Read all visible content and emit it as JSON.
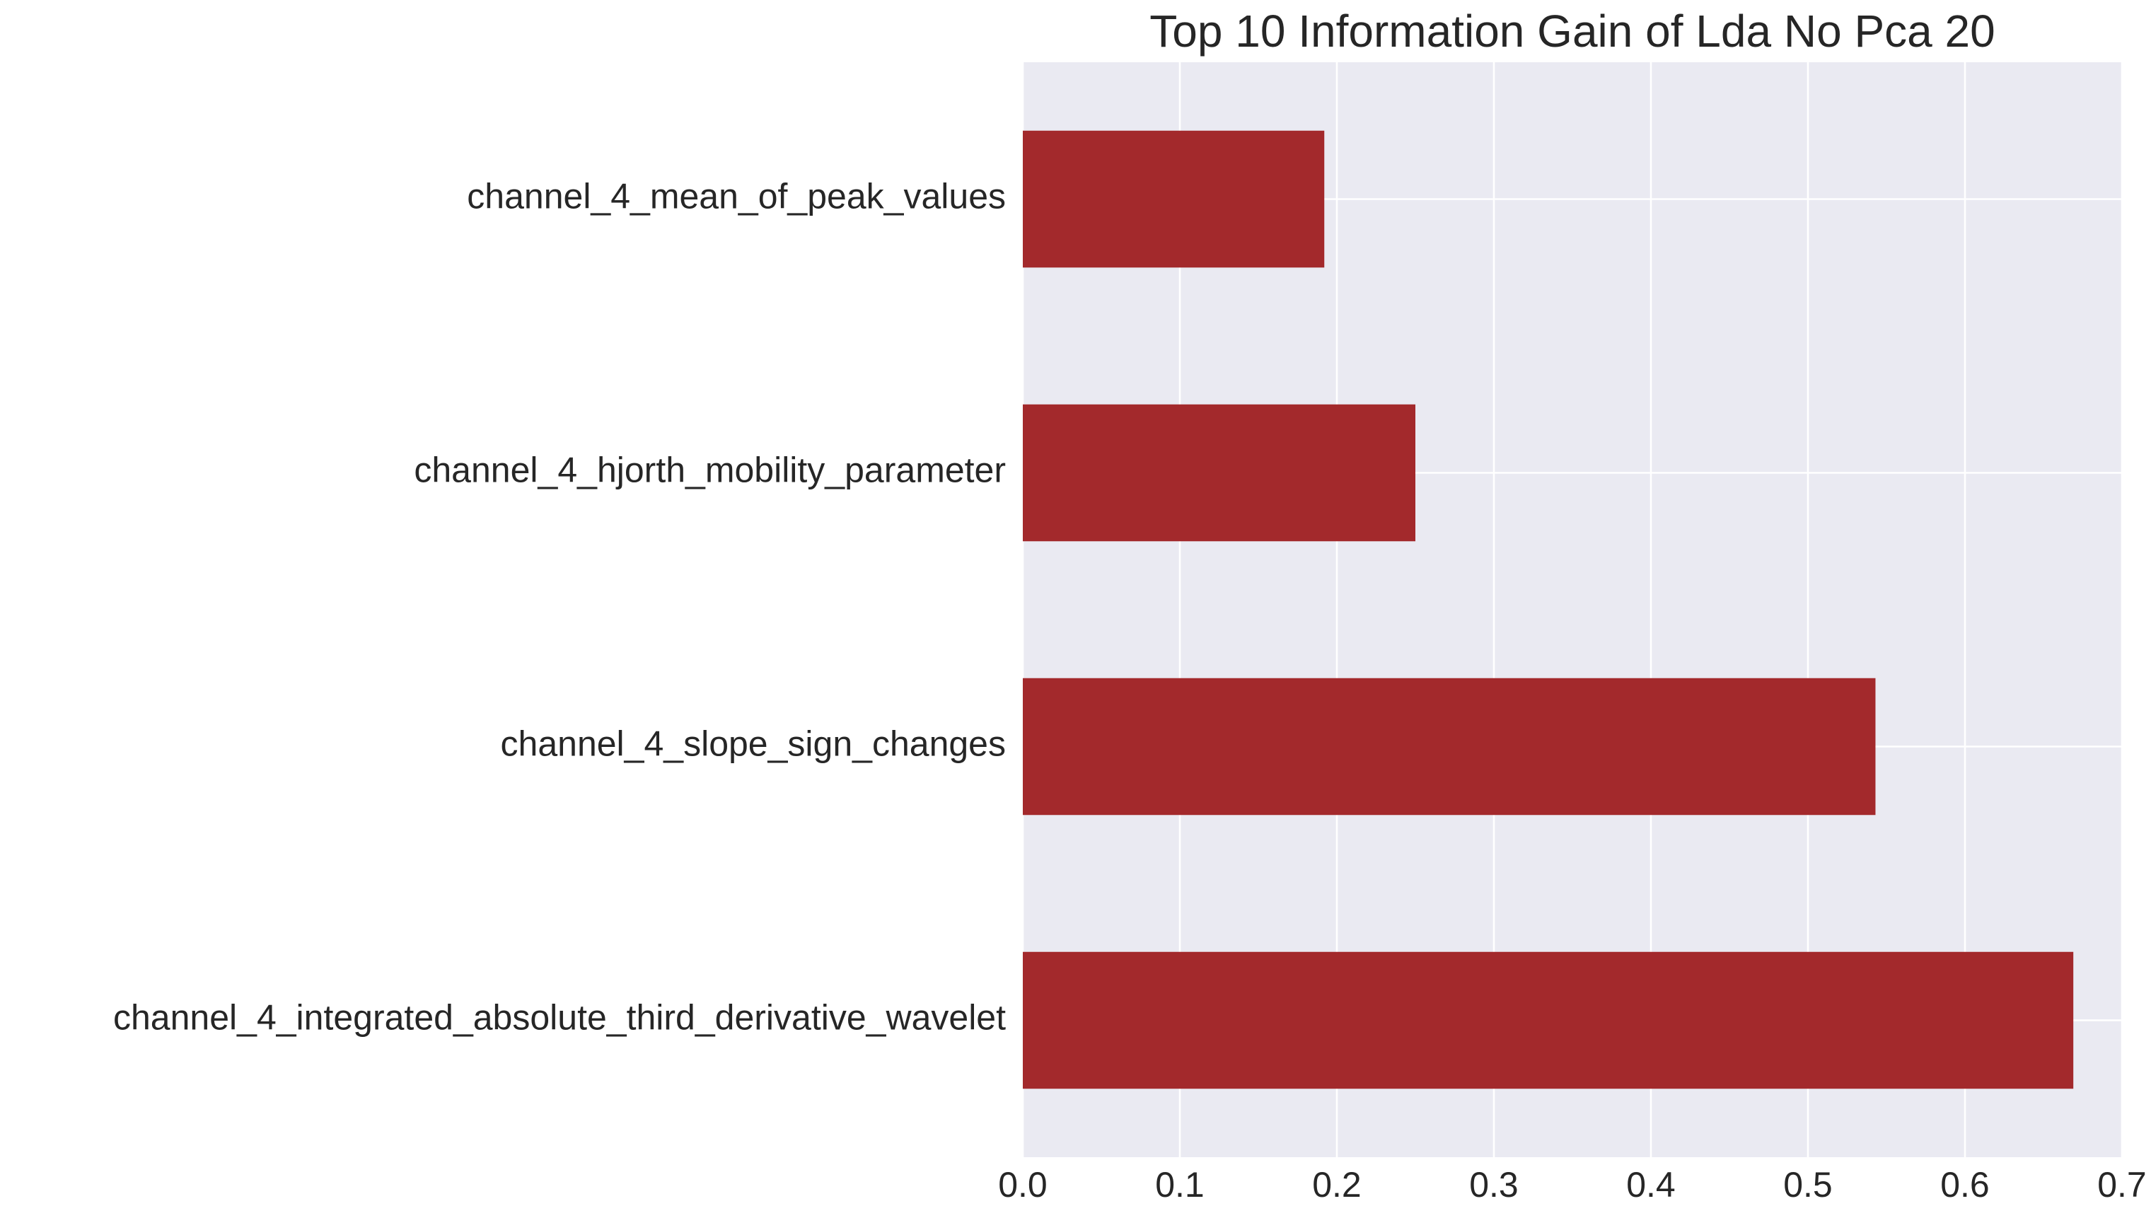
{
  "chart_data": {
    "type": "bar",
    "orientation": "horizontal",
    "title": "Top 10 Information Gain of Lda No Pca 20",
    "xlabel": "",
    "ylabel": "",
    "categories": [
      "channel_4_mean_of_peak_values",
      "channel_4_hjorth_mobility_parameter",
      "channel_4_slope_sign_changes",
      "channel_4_integrated_absolute_third_derivative_wavelet"
    ],
    "values": [
      0.192,
      0.25,
      0.543,
      0.669
    ],
    "xlim": [
      0,
      0.7
    ],
    "xticks": [
      "0.0",
      "0.1",
      "0.2",
      "0.3",
      "0.4",
      "0.5",
      "0.6",
      "0.7"
    ],
    "grid": true,
    "legend": "none",
    "colors": {
      "bar": "#a3292c",
      "plot_background": "#eaeaf2",
      "grid": "#ffffff",
      "text": "#262626"
    }
  }
}
